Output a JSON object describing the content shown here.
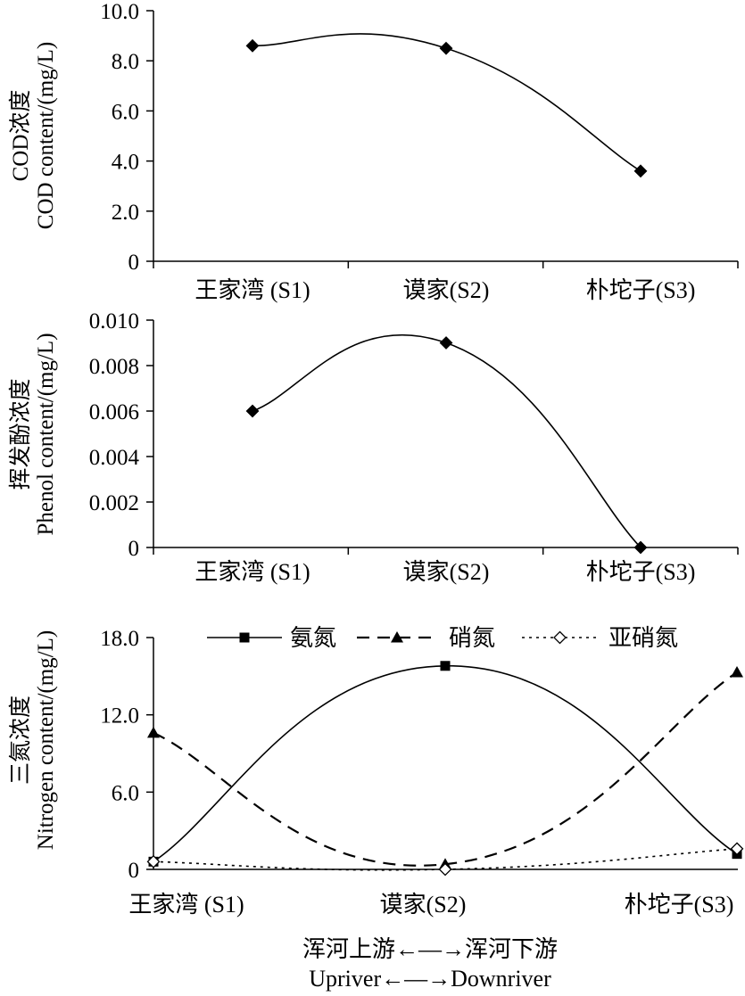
{
  "chart_data": [
    {
      "type": "line",
      "categories": [
        "王家湾 (S1)",
        "谟家(S2)",
        "朴坨子(S3)"
      ],
      "ylabel_zh": "COD浓度",
      "ylabel_en": "COD content/(mg/L)",
      "ylim": [
        0,
        10
      ],
      "yticks": [
        "0",
        "2.0",
        "4.0",
        "6.0",
        "8.0",
        "10.0"
      ],
      "series": [
        {
          "values": [
            8.6,
            8.5,
            3.6
          ],
          "marker": "diamond-filled",
          "line": "solid"
        }
      ]
    },
    {
      "type": "line",
      "categories": [
        "王家湾 (S1)",
        "谟家(S2)",
        "朴坨子(S3)"
      ],
      "ylabel_zh": "挥发酚浓度",
      "ylabel_en": "Phenol content/(mg/L)",
      "ylim": [
        0,
        0.01
      ],
      "yticks": [
        "0",
        "0.002",
        "0.004",
        "0.006",
        "0.008",
        "0.010"
      ],
      "series": [
        {
          "values": [
            0.006,
            0.009,
            0.0
          ],
          "marker": "diamond-filled",
          "line": "solid"
        }
      ]
    },
    {
      "type": "line",
      "categories": [
        "王家湾 (S1)",
        "谟家(S2)",
        "朴坨子(S3)"
      ],
      "ylabel_zh": "三氮浓度",
      "ylabel_en": "Nitrogen content/(mg/L)",
      "ylim": [
        0,
        18
      ],
      "yticks": [
        "0",
        "6.0",
        "12.0",
        "18.0"
      ],
      "legend_position": "top",
      "series": [
        {
          "name": "氨氮",
          "values": [
            0.6,
            15.8,
            1.2
          ],
          "marker": "square-filled",
          "line": "solid"
        },
        {
          "name": "硝氮",
          "values": [
            10.6,
            0.4,
            15.3
          ],
          "marker": "triangle-filled",
          "line": "dashed"
        },
        {
          "name": "亚硝氮",
          "values": [
            0.6,
            0.0,
            1.6
          ],
          "marker": "diamond-open",
          "line": "dotted"
        }
      ]
    }
  ],
  "footer": {
    "line1": "浑河上游←—→浑河下游",
    "line2": "Upriver←—→Downriver"
  }
}
